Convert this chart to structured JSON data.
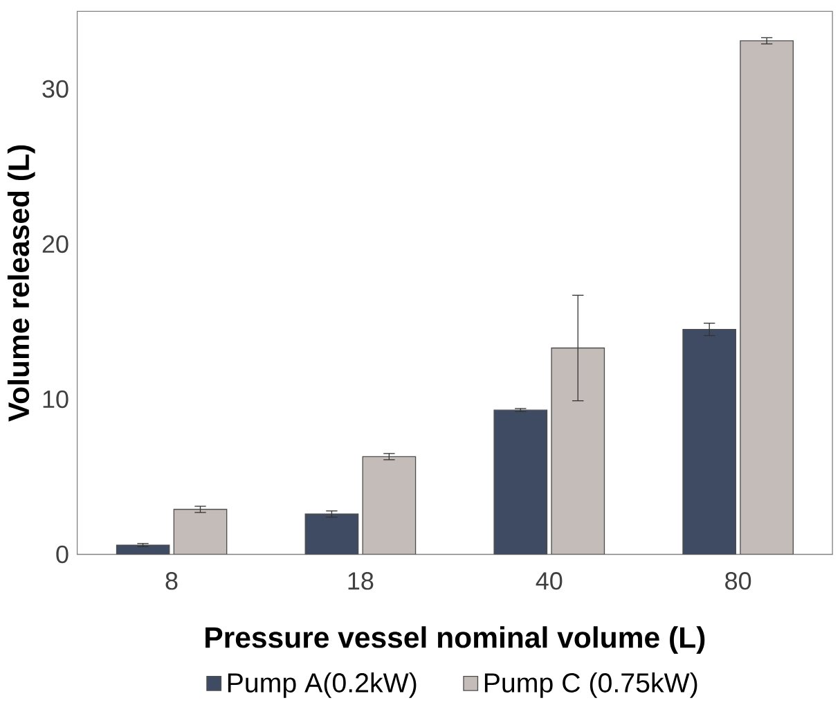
{
  "chart_data": {
    "type": "bar",
    "xlabel": "Pressure vessel  nominal volume (L)",
    "ylabel": "Volume  released (L)",
    "categories": [
      "8",
      "18",
      "40",
      "80"
    ],
    "series": [
      {
        "name": "Pump A(0.2kW)",
        "color": "#3f4b63",
        "values": [
          0.6,
          2.6,
          9.3,
          14.5
        ],
        "errors": [
          0.1,
          0.2,
          0.1,
          0.4
        ]
      },
      {
        "name": "Pump C (0.75kW)",
        "color": "#c4bcb8",
        "values": [
          2.9,
          6.3,
          13.3,
          33.1
        ],
        "errors": [
          0.2,
          0.2,
          3.4,
          0.2
        ]
      }
    ],
    "ylim": [
      0,
      35
    ],
    "yticks": [
      0,
      10,
      20,
      30
    ],
    "grid": false,
    "legend": "bottom"
  }
}
